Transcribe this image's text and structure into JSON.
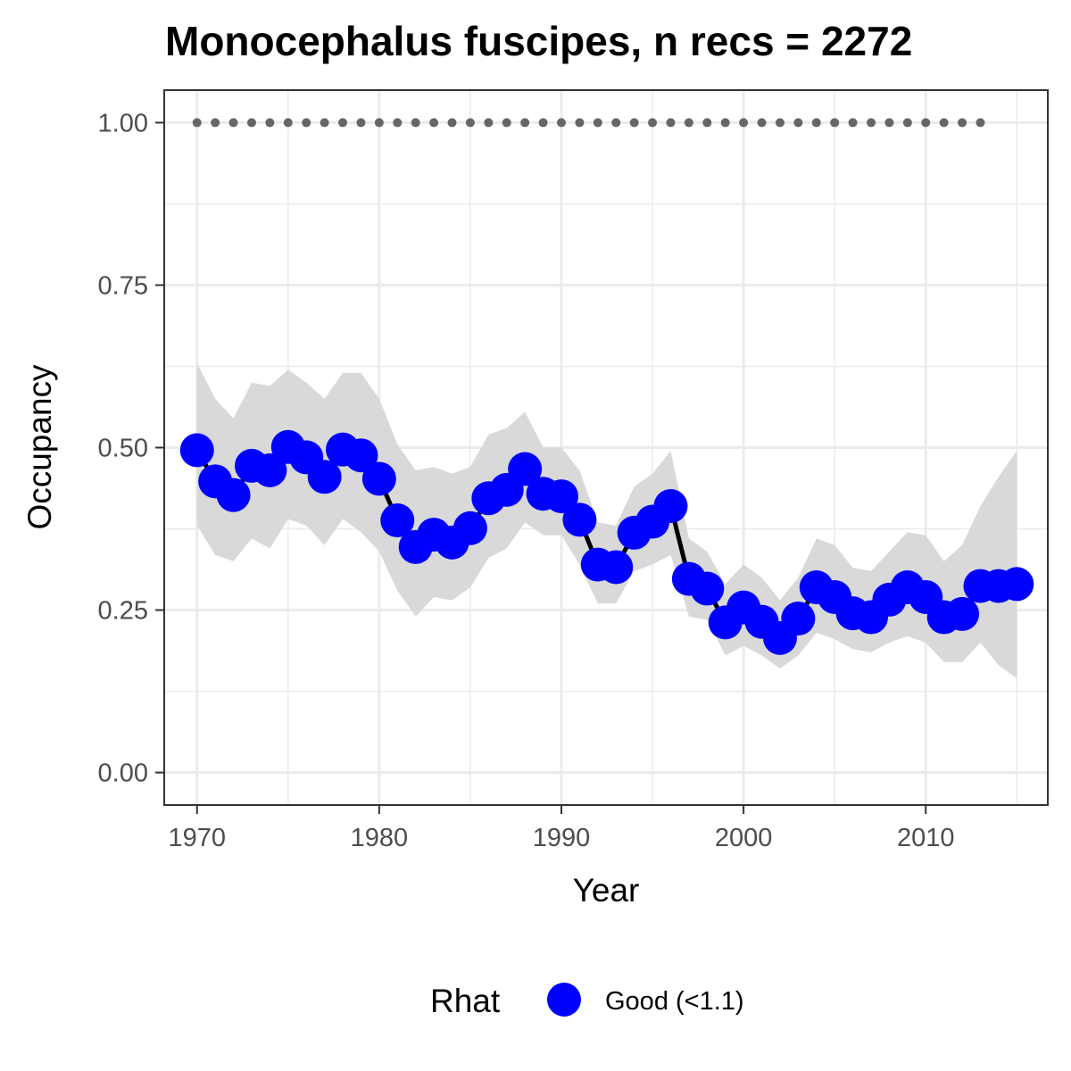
{
  "chart_data": {
    "type": "line",
    "title": "Monocephalus fuscipes, n recs = 2272",
    "xlabel": "Year",
    "ylabel": "Occupancy",
    "xlim": [
      1968.2,
      2016.7
    ],
    "ylim": [
      -0.05,
      1.05
    ],
    "x_ticks": [
      1970,
      1980,
      1990,
      2000,
      2010
    ],
    "x_tick_labels": [
      "1970",
      "1980",
      "1990",
      "2000",
      "2010"
    ],
    "y_ticks": [
      0,
      0.25,
      0.5,
      0.75,
      1.0
    ],
    "y_tick_labels": [
      "0.00",
      "0.25",
      "0.50",
      "0.75",
      "1.00"
    ],
    "grid": true,
    "legend": {
      "title": "Rhat",
      "position": "bottom",
      "entries": [
        {
          "label": "Good (<1.1)",
          "color": "#0000ff"
        }
      ]
    },
    "colors": {
      "points": "#0000ff",
      "line": "#000000",
      "ribbon": "#d9d9d9",
      "reference": "#666666",
      "grid": "#ebebeb",
      "panel_border": "#333333"
    },
    "series": [
      {
        "x": [
          1970,
          1971,
          1972,
          1973,
          1974,
          1975,
          1976,
          1977,
          1978,
          1979,
          1980,
          1981,
          1982,
          1983,
          1984,
          1985,
          1986,
          1987,
          1988,
          1989,
          1990,
          1991,
          1992,
          1993,
          1994,
          1995,
          1996,
          1997,
          1998,
          1999,
          2000,
          2001,
          2002,
          2003,
          2004,
          2005,
          2006,
          2007,
          2008,
          2009,
          2010,
          2011,
          2012,
          2013,
          2014,
          2015
        ],
        "values": [
          0.496,
          0.448,
          0.427,
          0.472,
          0.465,
          0.501,
          0.485,
          0.455,
          0.497,
          0.488,
          0.452,
          0.388,
          0.347,
          0.366,
          0.354,
          0.376,
          0.422,
          0.435,
          0.467,
          0.429,
          0.425,
          0.389,
          0.32,
          0.316,
          0.369,
          0.386,
          0.41,
          0.298,
          0.283,
          0.231,
          0.254,
          0.232,
          0.207,
          0.237,
          0.285,
          0.27,
          0.245,
          0.239,
          0.266,
          0.285,
          0.27,
          0.239,
          0.244,
          0.287,
          0.287,
          0.29
        ],
        "lower": [
          0.38,
          0.335,
          0.325,
          0.36,
          0.345,
          0.39,
          0.38,
          0.35,
          0.39,
          0.37,
          0.34,
          0.28,
          0.24,
          0.27,
          0.265,
          0.285,
          0.33,
          0.345,
          0.385,
          0.365,
          0.365,
          0.32,
          0.26,
          0.26,
          0.31,
          0.32,
          0.335,
          0.24,
          0.235,
          0.18,
          0.195,
          0.18,
          0.16,
          0.18,
          0.215,
          0.205,
          0.19,
          0.185,
          0.2,
          0.21,
          0.2,
          0.17,
          0.17,
          0.2,
          0.165,
          0.145
        ],
        "upper": [
          0.63,
          0.575,
          0.545,
          0.6,
          0.595,
          0.62,
          0.6,
          0.575,
          0.615,
          0.615,
          0.575,
          0.505,
          0.465,
          0.47,
          0.46,
          0.47,
          0.52,
          0.53,
          0.555,
          0.5,
          0.5,
          0.465,
          0.385,
          0.38,
          0.44,
          0.46,
          0.495,
          0.36,
          0.34,
          0.29,
          0.32,
          0.3,
          0.265,
          0.3,
          0.36,
          0.35,
          0.315,
          0.31,
          0.34,
          0.37,
          0.365,
          0.325,
          0.35,
          0.41,
          0.455,
          0.495
        ]
      }
    ],
    "reference_line": {
      "y": 1.0,
      "x": [
        1970,
        1971,
        1972,
        1973,
        1974,
        1975,
        1976,
        1977,
        1978,
        1979,
        1980,
        1981,
        1982,
        1983,
        1984,
        1985,
        1986,
        1987,
        1988,
        1989,
        1990,
        1991,
        1992,
        1993,
        1994,
        1995,
        1996,
        1997,
        1998,
        1999,
        2000,
        2001,
        2002,
        2003,
        2004,
        2005,
        2006,
        2007,
        2008,
        2009,
        2010,
        2011,
        2012,
        2013
      ]
    }
  }
}
